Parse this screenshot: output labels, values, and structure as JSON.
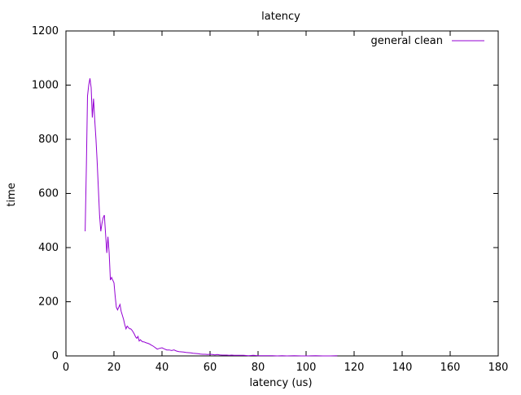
{
  "chart_data": {
    "type": "line",
    "title": "latency",
    "xlabel": "latency (us)",
    "ylabel": "time",
    "xlim": [
      0,
      180
    ],
    "ylim": [
      0,
      1200
    ],
    "xticks": [
      0,
      20,
      40,
      60,
      80,
      100,
      120,
      140,
      160,
      180
    ],
    "yticks": [
      0,
      200,
      400,
      600,
      800,
      1000,
      1200
    ],
    "grid": false,
    "legend_position": "top-right",
    "series": [
      {
        "name": "general clean",
        "color": "#9400d3",
        "x": [
          8,
          8.5,
          9,
          9.5,
          10,
          10.5,
          11,
          11.5,
          12,
          12.5,
          13,
          13.5,
          14,
          14.5,
          15,
          15.5,
          16,
          16.5,
          17,
          17.5,
          18,
          18.5,
          19,
          19.5,
          20,
          20.5,
          21,
          21.5,
          22,
          22.5,
          23,
          23.5,
          24,
          24.5,
          25,
          25.5,
          26,
          26.5,
          27,
          27.5,
          28,
          28.5,
          29,
          29.5,
          30,
          30.5,
          31,
          31.5,
          32,
          32.5,
          33,
          33.5,
          34,
          34.5,
          35,
          35.5,
          36,
          37,
          38,
          39,
          40,
          41,
          42,
          43,
          44,
          45,
          46,
          47,
          48,
          49,
          50,
          51,
          52,
          53,
          54,
          55,
          56,
          57,
          58,
          59,
          60,
          61,
          62,
          63,
          64,
          65,
          66,
          67,
          68,
          69,
          70,
          72,
          74,
          76,
          78,
          80,
          82,
          84,
          86,
          88,
          90,
          92,
          95,
          98,
          101,
          104,
          107,
          110,
          113
        ],
        "y": [
          460,
          700,
          960,
          1000,
          1025,
          990,
          880,
          950,
          870,
          800,
          720,
          620,
          520,
          460,
          490,
          510,
          520,
          450,
          380,
          440,
          380,
          280,
          290,
          280,
          270,
          220,
          180,
          170,
          180,
          190,
          165,
          150,
          135,
          115,
          100,
          110,
          105,
          100,
          100,
          95,
          88,
          80,
          70,
          65,
          72,
          55,
          60,
          55,
          52,
          52,
          50,
          48,
          47,
          45,
          43,
          40,
          38,
          32,
          25,
          28,
          30,
          26,
          22,
          22,
          20,
          22,
          18,
          16,
          15,
          14,
          13,
          12,
          11,
          10,
          9,
          8,
          7,
          6,
          6,
          5,
          6,
          5,
          4,
          5,
          4,
          3,
          3,
          3,
          2,
          3,
          2,
          2,
          2,
          1,
          2,
          1,
          1,
          1,
          1,
          0,
          1,
          0,
          1,
          0,
          0,
          1,
          0,
          0,
          1
        ]
      }
    ]
  }
}
